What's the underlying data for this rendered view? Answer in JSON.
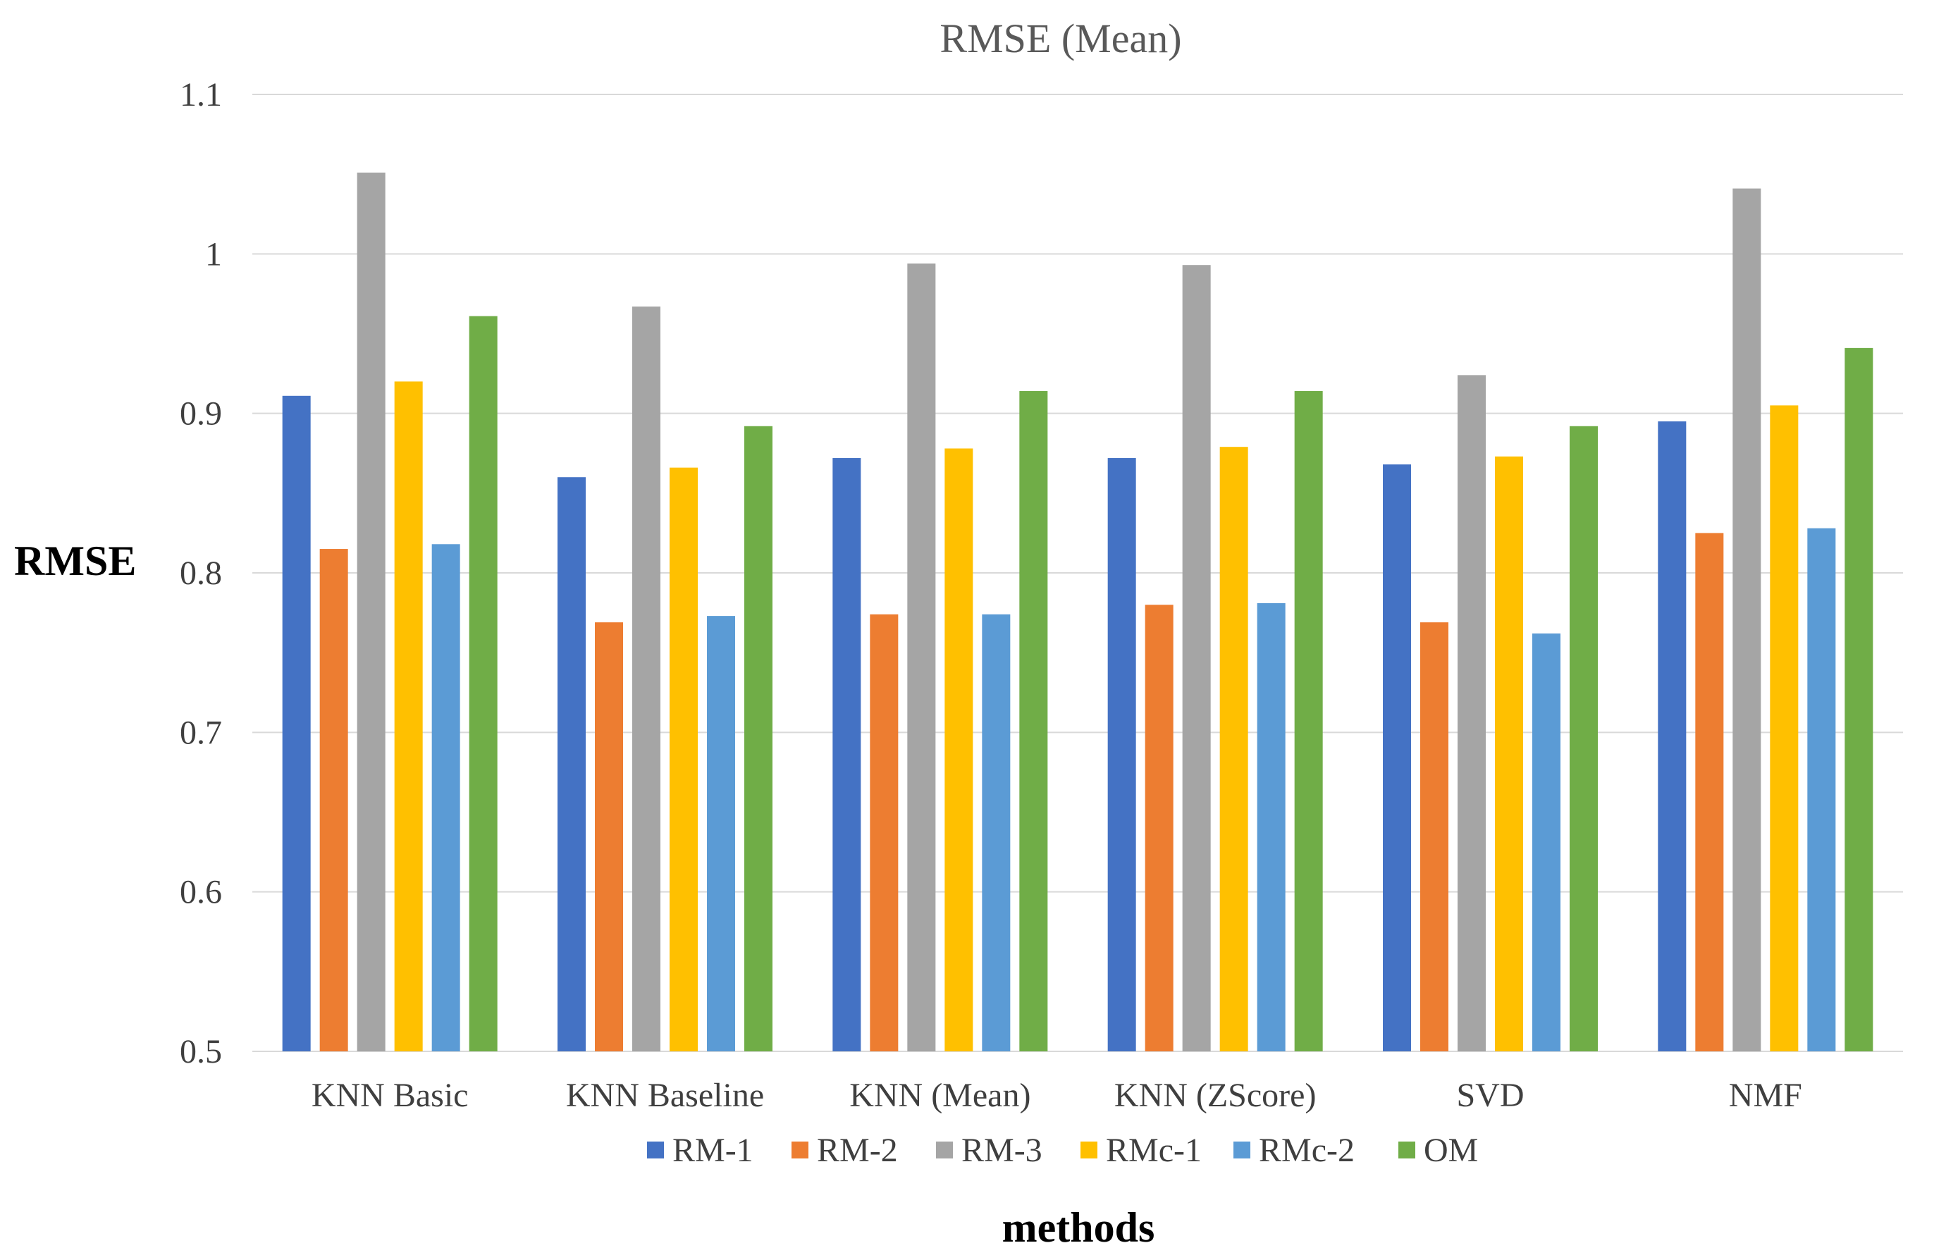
{
  "chart_data": {
    "type": "bar",
    "title": "RMSE (Mean)",
    "xlabel": "methods",
    "ylabel": "RMSE",
    "ylim": [
      0.5,
      1.1
    ],
    "yticks": [
      "0.5",
      "0.6",
      "0.7",
      "0.8",
      "0.9",
      "1",
      "1.1"
    ],
    "grid": true,
    "legend_position": "bottom",
    "categories": [
      "KNN Basic",
      "KNN Baseline",
      "KNN (Mean)",
      "KNN (ZScore)",
      "SVD",
      "NMF"
    ],
    "series": [
      {
        "name": "RM-1",
        "color": "#4472c4",
        "values": [
          0.911,
          0.86,
          0.872,
          0.872,
          0.868,
          0.895
        ]
      },
      {
        "name": "RM-2",
        "color": "#ed7d31",
        "values": [
          0.815,
          0.769,
          0.774,
          0.78,
          0.769,
          0.825
        ]
      },
      {
        "name": "RM-3",
        "color": "#a5a5a5",
        "values": [
          1.051,
          0.967,
          0.994,
          0.993,
          0.924,
          1.041
        ]
      },
      {
        "name": "RMc-1",
        "color": "#ffc000",
        "values": [
          0.92,
          0.866,
          0.878,
          0.879,
          0.873,
          0.905
        ]
      },
      {
        "name": "RMc-2",
        "color": "#5b9bd5",
        "values": [
          0.818,
          0.773,
          0.774,
          0.781,
          0.762,
          0.828
        ]
      },
      {
        "name": "OM",
        "color": "#70ad47",
        "values": [
          0.961,
          0.892,
          0.914,
          0.914,
          0.892,
          0.941
        ]
      }
    ]
  }
}
